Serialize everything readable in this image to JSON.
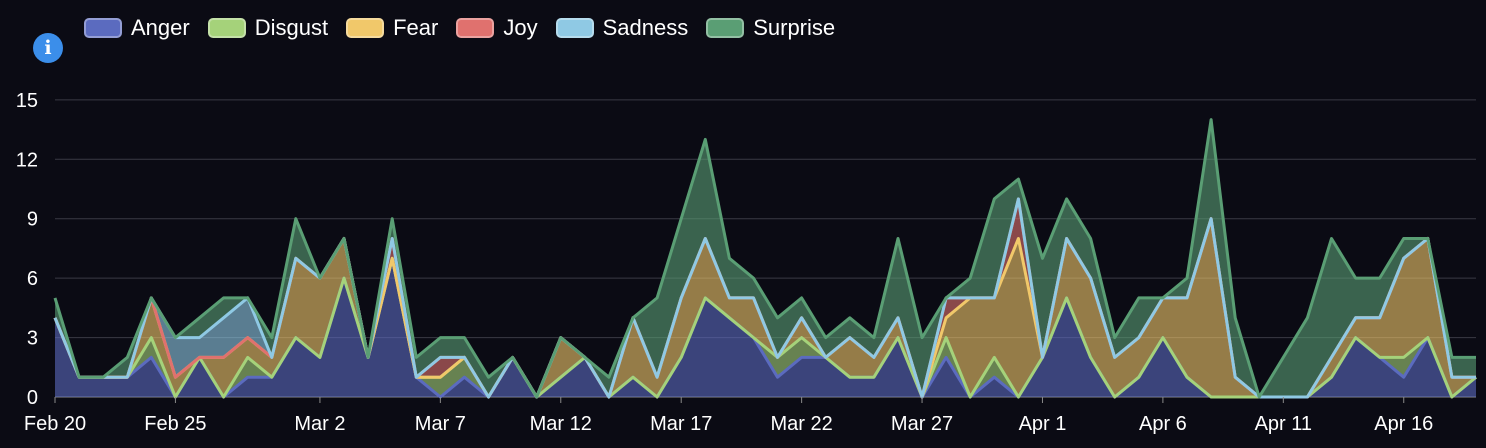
{
  "info_icon": {
    "name": "info-icon",
    "glyph": "i",
    "color": "#3b8eea"
  },
  "legend": [
    {
      "label": "Anger",
      "color": "#5b6bbf"
    },
    {
      "label": "Disgust",
      "color": "#a5d27a"
    },
    {
      "label": "Fear",
      "color": "#f1c86a"
    },
    {
      "label": "Joy",
      "color": "#e0716e"
    },
    {
      "label": "Sadness",
      "color": "#8fc9e4"
    },
    {
      "label": "Surprise",
      "color": "#5a9e74"
    }
  ],
  "chart_data": {
    "type": "area",
    "stacked": true,
    "x": [
      "Feb 20",
      "Feb 21",
      "Feb 22",
      "Feb 23",
      "Feb 24",
      "Feb 25",
      "Feb 26",
      "Feb 27",
      "Feb 28",
      "Feb 29",
      "Mar 1",
      "Mar 2",
      "Mar 3",
      "Mar 4",
      "Mar 5",
      "Mar 6",
      "Mar 7",
      "Mar 8",
      "Mar 9",
      "Mar 10",
      "Mar 11",
      "Mar 12",
      "Mar 13",
      "Mar 14",
      "Mar 15",
      "Mar 16",
      "Mar 17",
      "Mar 18",
      "Mar 19",
      "Mar 20",
      "Mar 21",
      "Mar 22",
      "Mar 23",
      "Mar 24",
      "Mar 25",
      "Mar 26",
      "Mar 27",
      "Mar 28",
      "Mar 29",
      "Mar 30",
      "Mar 31",
      "Apr 1",
      "Apr 2",
      "Apr 3",
      "Apr 4",
      "Apr 5",
      "Apr 6",
      "Apr 7",
      "Apr 8",
      "Apr 9",
      "Apr 10",
      "Apr 11",
      "Apr 12",
      "Apr 13",
      "Apr 14",
      "Apr 15",
      "Apr 16",
      "Apr 17",
      "Apr 18",
      "Apr 19"
    ],
    "x_ticks": [
      "Feb 20",
      "Feb 25",
      "Mar 2",
      "Mar 7",
      "Mar 12",
      "Mar 17",
      "Mar 22",
      "Mar 27",
      "Apr 1",
      "Apr 6",
      "Apr 11",
      "Apr 16"
    ],
    "y_ticks": [
      0,
      3,
      6,
      9,
      12,
      15
    ],
    "ylim": [
      0,
      16
    ],
    "grid": true,
    "legend_position": "top-left",
    "series": [
      {
        "name": "Anger",
        "values": [
          4,
          1,
          1,
          1,
          2,
          0,
          2,
          0,
          1,
          1,
          3,
          2,
          6,
          2,
          7,
          1,
          0,
          1,
          0,
          2,
          0,
          1,
          2,
          0,
          1,
          0,
          2,
          5,
          4,
          3,
          1,
          2,
          2,
          1,
          1,
          3,
          0,
          2,
          0,
          1,
          0,
          2,
          5,
          2,
          0,
          1,
          3,
          1,
          0,
          0,
          0,
          0,
          0,
          1,
          3,
          2,
          1,
          3,
          0,
          1
        ]
      },
      {
        "name": "Disgust",
        "values": [
          0,
          0,
          0,
          0,
          1,
          0,
          0,
          0,
          1,
          0,
          0,
          0,
          0,
          0,
          0,
          0,
          1,
          1,
          0,
          0,
          0,
          0,
          0,
          0,
          0,
          0,
          0,
          0,
          0,
          0,
          1,
          1,
          0,
          0,
          0,
          0,
          0,
          1,
          0,
          1,
          0,
          0,
          0,
          0,
          0,
          0,
          0,
          0,
          0,
          0,
          0,
          0,
          0,
          0,
          0,
          0,
          1,
          0,
          0,
          0
        ]
      },
      {
        "name": "Fear",
        "values": [
          0,
          0,
          0,
          0,
          2,
          1,
          0,
          2,
          1,
          1,
          4,
          4,
          2,
          0,
          0,
          0,
          0,
          0,
          0,
          0,
          0,
          2,
          0,
          0,
          3,
          1,
          3,
          3,
          1,
          2,
          0,
          1,
          0,
          2,
          1,
          1,
          0,
          1,
          5,
          3,
          8,
          0,
          3,
          4,
          2,
          2,
          2,
          4,
          9,
          1,
          0,
          0,
          0,
          1,
          1,
          2,
          5,
          5,
          1,
          0
        ]
      },
      {
        "name": "Joy",
        "values": [
          0,
          0,
          0,
          0,
          0,
          0,
          0,
          0,
          0,
          0,
          0,
          0,
          0,
          0,
          1,
          0,
          1,
          0,
          0,
          0,
          0,
          0,
          0,
          0,
          0,
          0,
          0,
          0,
          0,
          0,
          0,
          0,
          0,
          0,
          0,
          0,
          0,
          1,
          0,
          0,
          2,
          0,
          0,
          0,
          0,
          0,
          0,
          0,
          0,
          0,
          0,
          0,
          0,
          0,
          0,
          0,
          0,
          0,
          0,
          0
        ]
      },
      {
        "name": "Sadness",
        "values": [
          0,
          0,
          0,
          0,
          0,
          2,
          1,
          2,
          2,
          0,
          0,
          0,
          0,
          0,
          0,
          0,
          0,
          0,
          0,
          0,
          0,
          0,
          0,
          0,
          0,
          0,
          0,
          0,
          0,
          0,
          0,
          0,
          0,
          0,
          0,
          0,
          0,
          0,
          0,
          0,
          0,
          0,
          0,
          0,
          0,
          0,
          0,
          0,
          0,
          0,
          0,
          0,
          0,
          0,
          0,
          0,
          0,
          0,
          0,
          0
        ]
      },
      {
        "name": "Surprise",
        "values": [
          1,
          0,
          0,
          1,
          0,
          0,
          1,
          1,
          0,
          1,
          2,
          0,
          0,
          0,
          1,
          1,
          1,
          1,
          1,
          0,
          0,
          0,
          0,
          1,
          0,
          4,
          4,
          5,
          2,
          1,
          2,
          1,
          1,
          1,
          1,
          4,
          3,
          0,
          1,
          5,
          1,
          5,
          2,
          2,
          1,
          2,
          0,
          1,
          5,
          3,
          0,
          2,
          4,
          6,
          2,
          2,
          1,
          0,
          1,
          1
        ]
      }
    ]
  }
}
